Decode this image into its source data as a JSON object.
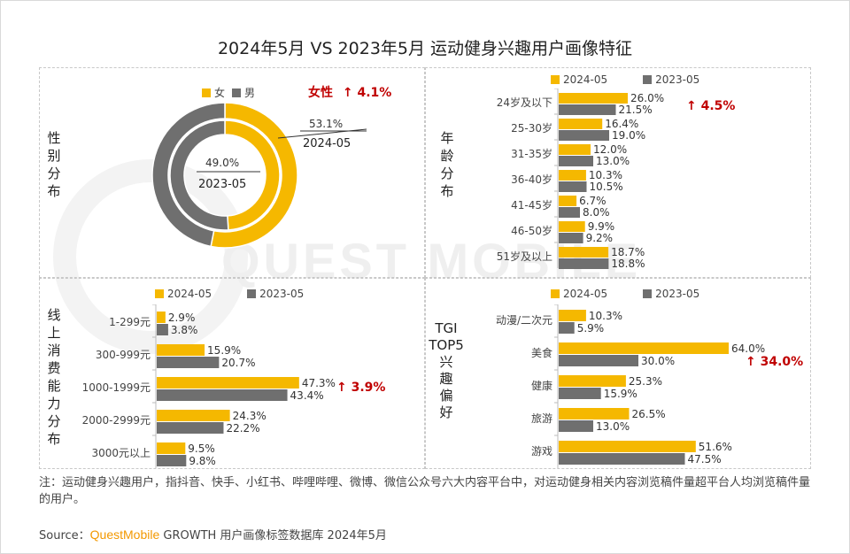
{
  "title": "2024年5月 VS 2023年5月 运动健身兴趣用户画像特征",
  "watermark": "QUEST MOBILE",
  "colors": {
    "y2024": "#f5b800",
    "y2023": "#6f6f6f"
  },
  "legend": {
    "s2024": "2024-05",
    "s2023": "2023-05"
  },
  "gender": {
    "label": "性别分布",
    "legend_female": "女",
    "legend_male": "男",
    "highlight_text": "女性",
    "highlight_value": "↑ 4.1%",
    "outer_value": "53.1%",
    "outer_period": "2024-05",
    "inner_value": "49.0%",
    "inner_period": "2023-05"
  },
  "age": {
    "label": "年龄分布",
    "highlight": "↑ 4.5%"
  },
  "spending": {
    "label": "线上消费能力分布",
    "highlight": "↑ 3.9%"
  },
  "tgi": {
    "label_lines": [
      "TGI",
      "TOP5",
      "兴",
      "趣",
      "偏",
      "好"
    ],
    "highlight": "↑ 34.0%"
  },
  "chart_data": [
    {
      "type": "pie",
      "title": "性别分布",
      "series": [
        {
          "name": "2024-05",
          "values": [
            53.1,
            46.9
          ]
        },
        {
          "name": "2023-05",
          "values": [
            49.0,
            51.0
          ]
        }
      ],
      "categories": [
        "女",
        "男"
      ]
    },
    {
      "type": "bar",
      "title": "年龄分布",
      "categories": [
        "24岁及以下",
        "25-30岁",
        "31-35岁",
        "36-40岁",
        "41-45岁",
        "46-50岁",
        "51岁及以上"
      ],
      "series": [
        {
          "name": "2024-05",
          "values": [
            26.0,
            16.4,
            12.0,
            10.3,
            6.7,
            9.9,
            18.7
          ]
        },
        {
          "name": "2023-05",
          "values": [
            21.5,
            19.0,
            13.0,
            10.5,
            8.0,
            9.2,
            18.8
          ]
        }
      ],
      "labels_2024": [
        "26.0%",
        "16.4%",
        "12.0%",
        "10.3%",
        "6.7%",
        "9.9%",
        "18.7%"
      ],
      "labels_2023": [
        "21.5%",
        "19.0%",
        "13.0%",
        "10.5%",
        "8.0%",
        "9.2%",
        "18.8%"
      ]
    },
    {
      "type": "bar",
      "title": "线上消费能力分布",
      "categories": [
        "1-299元",
        "300-999元",
        "1000-1999元",
        "2000-2999元",
        "3000元以上"
      ],
      "series": [
        {
          "name": "2024-05",
          "values": [
            2.9,
            15.9,
            47.3,
            24.3,
            9.5
          ]
        },
        {
          "name": "2023-05",
          "values": [
            3.8,
            20.7,
            43.4,
            22.2,
            9.8
          ]
        }
      ],
      "labels_2024": [
        "2.9%",
        "15.9%",
        "47.3%",
        "24.3%",
        "9.5%"
      ],
      "labels_2023": [
        "3.8%",
        "20.7%",
        "43.4%",
        "22.2%",
        "9.8%"
      ]
    },
    {
      "type": "bar",
      "title": "TGI TOP5 兴趣偏好",
      "categories": [
        "动漫/二次元",
        "美食",
        "健康",
        "旅游",
        "游戏"
      ],
      "series": [
        {
          "name": "2024-05",
          "values": [
            10.3,
            64.0,
            25.3,
            26.5,
            51.6
          ]
        },
        {
          "name": "2023-05",
          "values": [
            5.9,
            30.0,
            15.9,
            13.0,
            47.5
          ]
        }
      ],
      "labels_2024": [
        "10.3%",
        "64.0%",
        "25.3%",
        "26.5%",
        "51.6%"
      ],
      "labels_2023": [
        "5.9%",
        "30.0%",
        "15.9%",
        "13.0%",
        "47.5%"
      ]
    }
  ],
  "note": "注：运动健身兴趣用户，指抖音、快手、小红书、哔哩哔哩、微博、微信公众号六大内容平台中，对运动健身相关内容浏览稿件量超平台人均浏览稿件量的用户。",
  "source": {
    "prefix": "Source：",
    "brand": "QuestMobile",
    "rest": " GROWTH 用户画像标签数据库 2024年5月"
  }
}
